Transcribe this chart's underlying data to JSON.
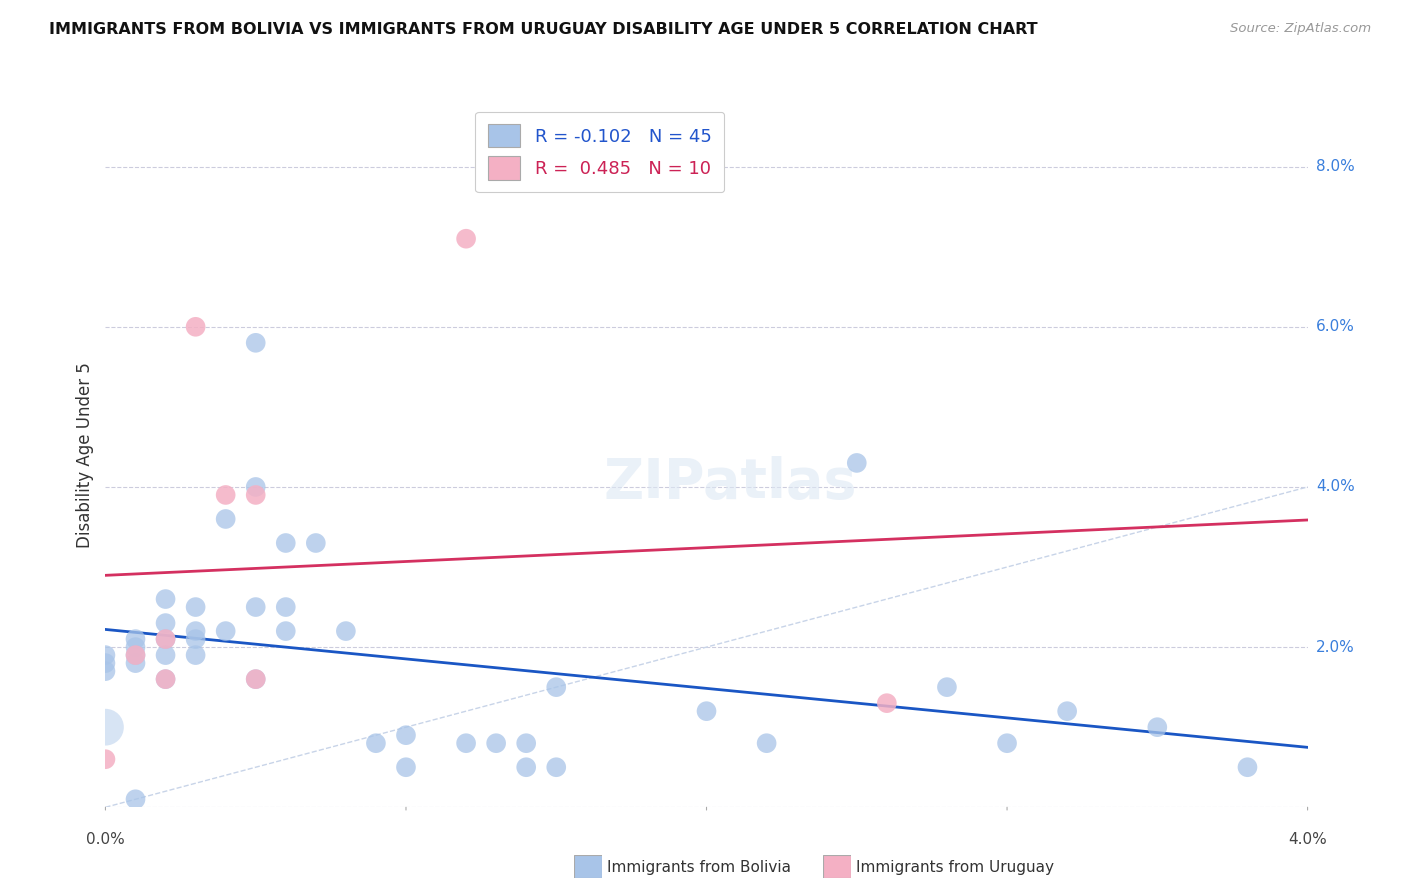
{
  "title": "IMMIGRANTS FROM BOLIVIA VS IMMIGRANTS FROM URUGUAY DISABILITY AGE UNDER 5 CORRELATION CHART",
  "source": "Source: ZipAtlas.com",
  "ylabel": "Disability Age Under 5",
  "legend_bolivia": "Immigrants from Bolivia",
  "legend_uruguay": "Immigrants from Uruguay",
  "r_bolivia": -0.102,
  "n_bolivia": 45,
  "r_uruguay": 0.485,
  "n_uruguay": 10,
  "xlim": [
    0.0,
    0.04
  ],
  "ylim": [
    0.0,
    0.088
  ],
  "bolivia_color": "#a8c4e8",
  "uruguay_color": "#f4b0c4",
  "trend_bolivia_color": "#1a56c4",
  "trend_uruguay_color": "#d43060",
  "diagonal_color": "#c8d4e8",
  "bolivia_x": [
    0.0,
    0.0,
    0.0,
    0.001,
    0.001,
    0.001,
    0.001,
    0.001,
    0.002,
    0.002,
    0.002,
    0.002,
    0.002,
    0.003,
    0.003,
    0.003,
    0.003,
    0.004,
    0.004,
    0.005,
    0.005,
    0.005,
    0.005,
    0.006,
    0.006,
    0.006,
    0.007,
    0.008,
    0.009,
    0.01,
    0.01,
    0.012,
    0.013,
    0.014,
    0.014,
    0.015,
    0.015,
    0.02,
    0.022,
    0.025,
    0.028,
    0.03,
    0.032,
    0.035,
    0.038
  ],
  "bolivia_y": [
    0.019,
    0.018,
    0.017,
    0.021,
    0.02,
    0.019,
    0.018,
    0.001,
    0.026,
    0.023,
    0.021,
    0.019,
    0.016,
    0.025,
    0.022,
    0.021,
    0.019,
    0.036,
    0.022,
    0.058,
    0.04,
    0.025,
    0.016,
    0.033,
    0.025,
    0.022,
    0.033,
    0.022,
    0.008,
    0.009,
    0.005,
    0.008,
    0.008,
    0.008,
    0.005,
    0.015,
    0.005,
    0.012,
    0.008,
    0.043,
    0.015,
    0.008,
    0.012,
    0.01,
    0.005
  ],
  "bolivia_large_x": [
    0.0
  ],
  "bolivia_large_y": [
    0.01
  ],
  "uruguay_x": [
    0.0,
    0.001,
    0.002,
    0.002,
    0.003,
    0.004,
    0.005,
    0.005,
    0.012,
    0.026
  ],
  "uruguay_y": [
    0.006,
    0.019,
    0.021,
    0.016,
    0.06,
    0.039,
    0.039,
    0.016,
    0.071,
    0.013
  ],
  "yticks": [
    0.0,
    0.02,
    0.04,
    0.06,
    0.08
  ],
  "xticks": [
    0.0,
    0.01,
    0.02,
    0.03,
    0.04
  ]
}
